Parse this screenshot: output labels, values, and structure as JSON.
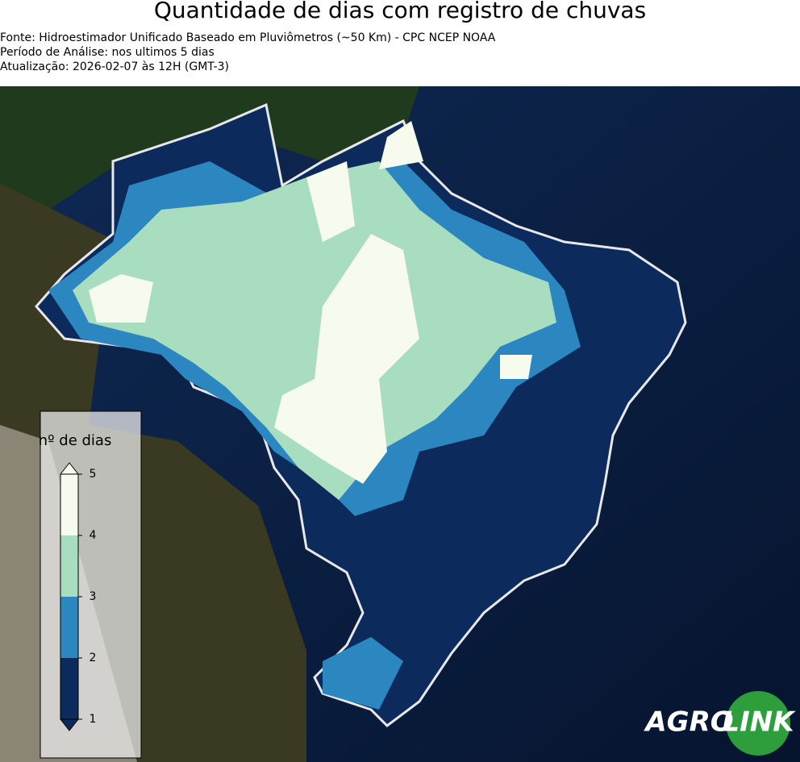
{
  "header": {
    "title": "Quantidade de dias com registro de chuvas",
    "lines": [
      "Fonte: Hidroestimador Unificado Baseado em Pluviômetros (~50 Km) - CPC NCEP NOAA",
      "Período de Análise: nos ultimos 5 dias",
      "Atualização: 2026-02-07 às 12H (GMT-3)"
    ]
  },
  "colorbar": {
    "label": "nº de dias",
    "lim": [
      1,
      5
    ],
    "ticks": [
      1,
      2,
      3,
      4,
      5
    ],
    "colors": [
      "#0c2a5c",
      "#2c87c1",
      "#a9ddbf",
      "#f6fbee"
    ]
  },
  "logo": {
    "left": "AGRO",
    "right": "LINK"
  }
}
